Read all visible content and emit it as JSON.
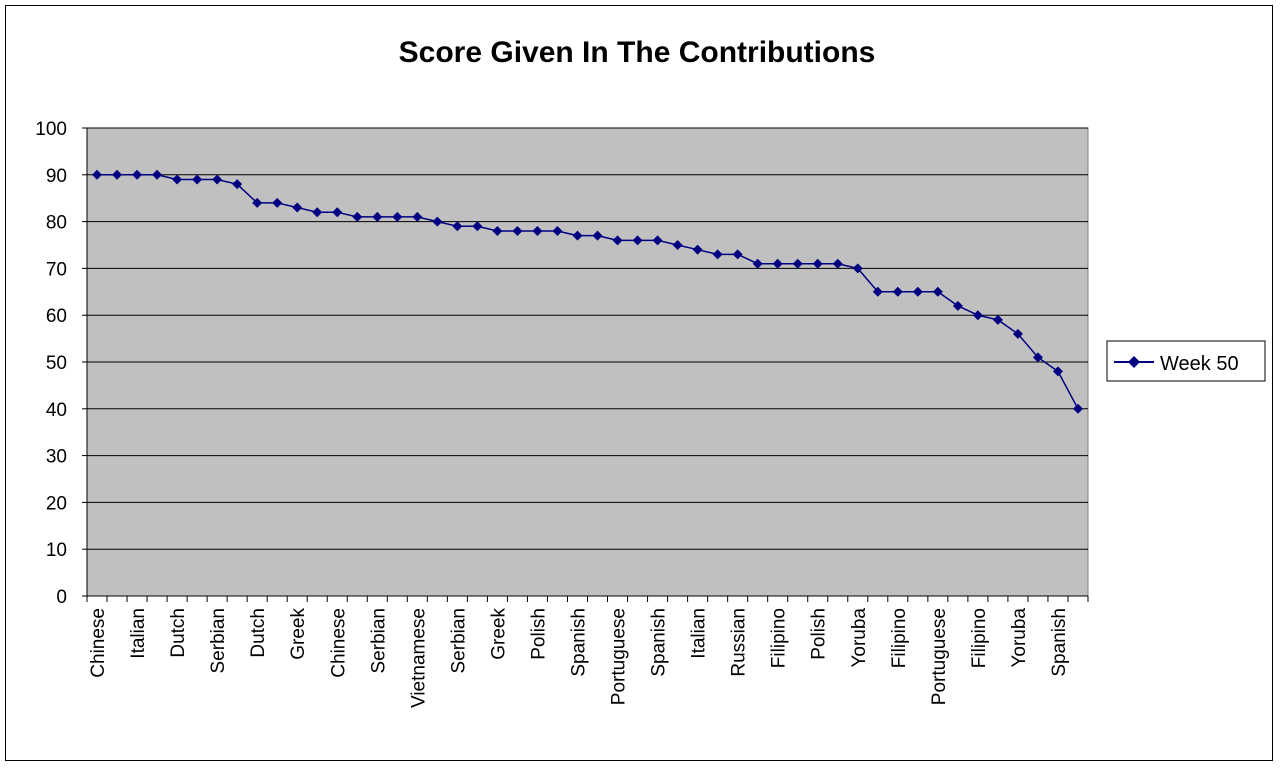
{
  "chart_data": {
    "type": "line",
    "title": "Score Given In The Contributions",
    "xlabel": "",
    "ylabel": "",
    "ylim": [
      0,
      100
    ],
    "yticks": [
      0,
      10,
      20,
      30,
      40,
      50,
      60,
      70,
      80,
      90,
      100
    ],
    "grid": true,
    "legend_position": "right",
    "colors": {
      "series": "#000080",
      "plot_background": "#c0c0c0",
      "gridline": "#000000"
    },
    "x_tick_labels": [
      "Chinese",
      "Italian",
      "Dutch",
      "Serbian",
      "Dutch",
      "Greek",
      "Chinese",
      "Serbian",
      "Vietnamese",
      "Serbian",
      "Greek",
      "Polish",
      "Spanish",
      "Portuguese",
      "Spanish",
      "Italian",
      "Russian",
      "Filipino",
      "Polish",
      "Yoruba",
      "Filipino",
      "Portuguese",
      "Filipino",
      "Yoruba",
      "Spanish"
    ],
    "series": [
      {
        "name": "Week 50",
        "values": [
          90,
          90,
          90,
          90,
          89,
          89,
          89,
          88,
          84,
          84,
          83,
          82,
          82,
          81,
          81,
          81,
          81,
          80,
          79,
          79,
          78,
          78,
          78,
          78,
          77,
          77,
          76,
          76,
          76,
          75,
          74,
          73,
          73,
          71,
          71,
          71,
          71,
          71,
          70,
          65,
          65,
          65,
          65,
          62,
          60,
          59,
          56,
          51,
          48,
          40
        ]
      }
    ]
  }
}
